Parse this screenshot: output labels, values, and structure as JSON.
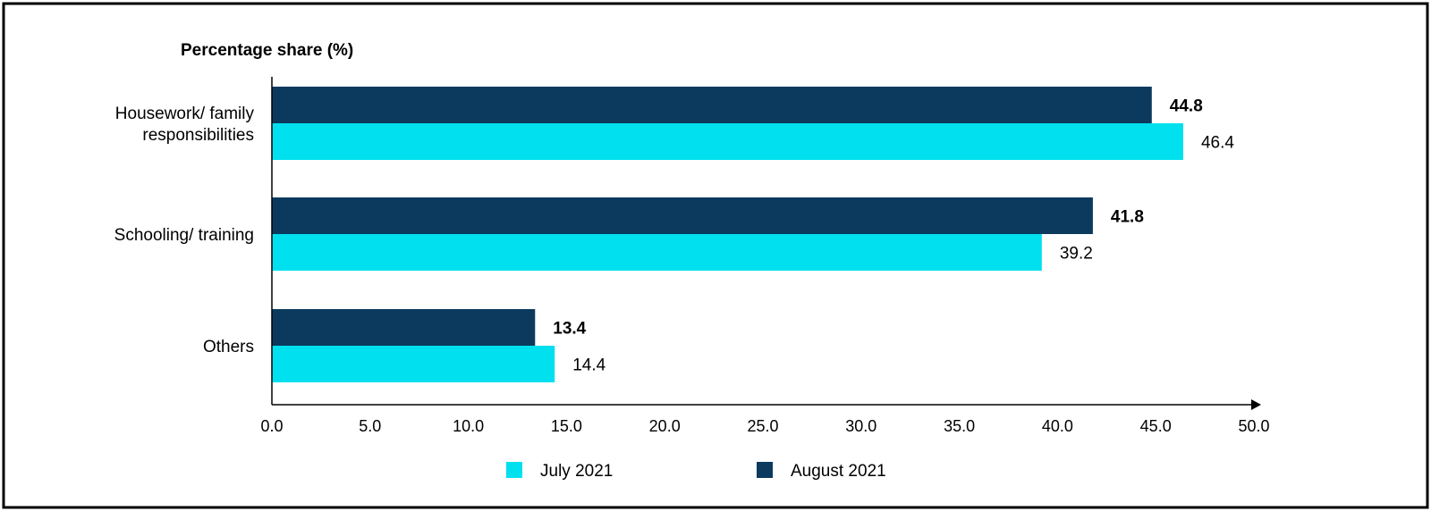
{
  "chart_data": {
    "type": "bar",
    "orientation": "horizontal",
    "ylabel": "Percentage share (%)",
    "categories": [
      [
        "Housework/ family",
        "responsibilities"
      ],
      [
        "Schooling/ training"
      ],
      [
        "Others"
      ]
    ],
    "series": [
      {
        "name": "August 2021",
        "values": [
          44.8,
          41.8,
          13.4
        ],
        "color": "#0b3a5e",
        "label_bold": true
      },
      {
        "name": "July 2021",
        "values": [
          46.4,
          39.2,
          14.4
        ],
        "color": "#00e0ee",
        "label_bold": false
      }
    ],
    "value_labels": [
      [
        "44.8",
        "41.8",
        "13.4"
      ],
      [
        "46.4",
        "39.2",
        "14.4"
      ]
    ],
    "xlim": [
      0,
      50
    ],
    "xticks": [
      "0.0",
      "5.0",
      "10.0",
      "15.0",
      "20.0",
      "25.0",
      "30.0",
      "35.0",
      "40.0",
      "45.0",
      "50.0"
    ],
    "legend": {
      "placement": "bottom",
      "items": [
        {
          "name": "July 2021",
          "color": "#00e0ee"
        },
        {
          "name": "August 2021",
          "color": "#0b3a5e"
        }
      ]
    },
    "grid": false
  }
}
